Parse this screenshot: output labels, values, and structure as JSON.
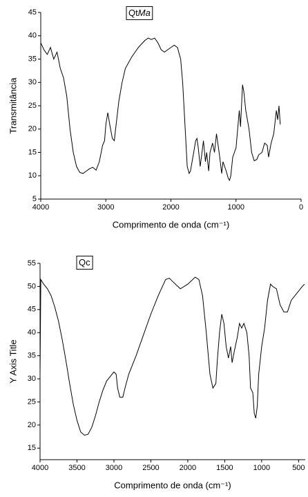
{
  "chart_data": [
    {
      "type": "line",
      "annotation_parts": [
        "Qt",
        "Ma"
      ],
      "xlabel": "Comprimento de onda (cm⁻¹)",
      "ylabel": "Transmitância",
      "xlim": [
        4000,
        0
      ],
      "ylim": [
        5,
        45
      ],
      "xticks": [
        4000,
        3000,
        2000,
        1000,
        0
      ],
      "yticks": [
        5,
        10,
        15,
        20,
        25,
        30,
        35,
        40,
        45
      ],
      "series": [
        {
          "color": "#000000",
          "x": [
            4000,
            3950,
            3900,
            3850,
            3800,
            3750,
            3700,
            3650,
            3600,
            3550,
            3500,
            3450,
            3400,
            3350,
            3300,
            3250,
            3200,
            3150,
            3100,
            3050,
            3020,
            3000,
            2970,
            2940,
            2900,
            2870,
            2850,
            2800,
            2750,
            2700,
            2600,
            2500,
            2400,
            2350,
            2300,
            2250,
            2200,
            2150,
            2100,
            2050,
            2000,
            1950,
            1900,
            1850,
            1820,
            1780,
            1750,
            1720,
            1700,
            1650,
            1620,
            1600,
            1580,
            1550,
            1500,
            1470,
            1450,
            1420,
            1400,
            1360,
            1330,
            1300,
            1280,
            1250,
            1220,
            1200,
            1150,
            1120,
            1100,
            1080,
            1050,
            1000,
            950,
            930,
            900,
            880,
            850,
            800,
            760,
            720,
            680,
            650,
            600,
            560,
            520,
            500,
            460,
            420,
            380,
            360,
            340,
            320
          ],
          "values": [
            38.5,
            37,
            36,
            37.5,
            35,
            36.5,
            33,
            31,
            27,
            20,
            15,
            12,
            10.7,
            10.5,
            11,
            11.5,
            11.8,
            11.2,
            13,
            16.5,
            17.5,
            21,
            23.5,
            21,
            18,
            17.5,
            20,
            26,
            30,
            33,
            35.5,
            37.5,
            39,
            39.5,
            39.2,
            39.5,
            38.5,
            37,
            36.5,
            37,
            37.5,
            38,
            37.5,
            35,
            30,
            20,
            12,
            10.5,
            11,
            15,
            17.5,
            18,
            16,
            12,
            17.5,
            13,
            15,
            11,
            15,
            17,
            15,
            19,
            17,
            14,
            10.5,
            13,
            11,
            9.5,
            9,
            10,
            14,
            16,
            24,
            20.5,
            29.5,
            28,
            24,
            20,
            15,
            13.2,
            13.5,
            14.5,
            15,
            17,
            16.5,
            14,
            17,
            19,
            24,
            22,
            25,
            21
          ]
        }
      ]
    },
    {
      "type": "line",
      "annotation_parts": [
        "Qc"
      ],
      "xlabel": "Comprimento de onda (cm⁻¹)",
      "ylabel": "Y Axis Title",
      "xlim": [
        4000,
        410
      ],
      "ylim": [
        12.5,
        55
      ],
      "xticks": [
        4000,
        3500,
        3000,
        2500,
        2000,
        1500,
        1000,
        500
      ],
      "yticks": [
        15,
        20,
        25,
        30,
        35,
        40,
        45,
        50,
        55
      ],
      "series": [
        {
          "color": "#000000",
          "x": [
            4000,
            3990,
            3950,
            3900,
            3850,
            3800,
            3750,
            3700,
            3650,
            3600,
            3550,
            3500,
            3450,
            3400,
            3350,
            3300,
            3250,
            3200,
            3150,
            3100,
            3050,
            3000,
            2970,
            2950,
            2920,
            2880,
            2850,
            2800,
            2700,
            2600,
            2500,
            2400,
            2300,
            2250,
            2200,
            2100,
            2000,
            1900,
            1850,
            1800,
            1750,
            1700,
            1660,
            1620,
            1600,
            1570,
            1540,
            1510,
            1480,
            1450,
            1420,
            1400,
            1370,
            1330,
            1300,
            1270,
            1240,
            1200,
            1170,
            1150,
            1120,
            1100,
            1080,
            1060,
            1040,
            1000,
            960,
            920,
            880,
            850,
            800,
            750,
            700,
            650,
            600,
            550,
            500,
            450,
            420
          ],
          "values": [
            31,
            51.5,
            50.5,
            49.5,
            48,
            45.5,
            42.5,
            38.5,
            34,
            29,
            24.5,
            21,
            18.5,
            17.8,
            18,
            19.5,
            22,
            25,
            27.5,
            29.5,
            30.5,
            31.5,
            31,
            28,
            26,
            26,
            28,
            31,
            35,
            39.5,
            44,
            48,
            51.5,
            51.8,
            51,
            49.5,
            50.5,
            52,
            51.5,
            48,
            40,
            31,
            28,
            29,
            34,
            40,
            44,
            42,
            37,
            34.5,
            37,
            33.5,
            36,
            39,
            42,
            41,
            42,
            40,
            35,
            28,
            27,
            22.5,
            21.5,
            24,
            31,
            37,
            41,
            47,
            50.5,
            50,
            49.5,
            46,
            44.5,
            44.5,
            47,
            48,
            49,
            50,
            50.5
          ]
        }
      ]
    }
  ]
}
